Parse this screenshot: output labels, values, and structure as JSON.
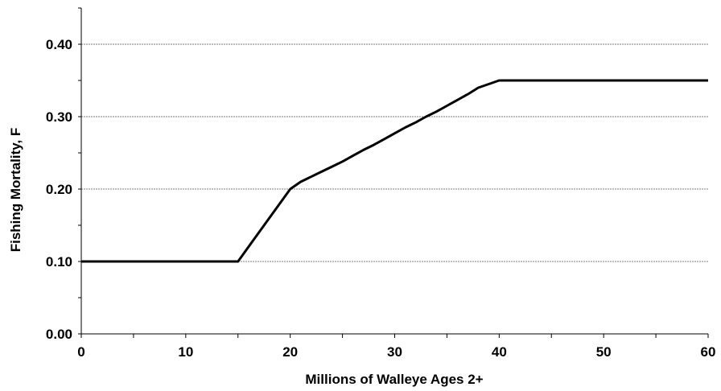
{
  "chart_data": {
    "type": "line",
    "title": "",
    "xlabel": "Millions of Walleye Ages 2+",
    "ylabel": "Fishing Mortality, F",
    "xlim": [
      0,
      60
    ],
    "ylim": [
      0,
      0.45
    ],
    "x_ticks": [
      0,
      10,
      20,
      30,
      40,
      50,
      60
    ],
    "x_tick_labels": [
      "0",
      "10",
      "20",
      "30",
      "40",
      "50",
      "60"
    ],
    "y_ticks": [
      0,
      0.1,
      0.2,
      0.3,
      0.4
    ],
    "y_tick_labels": [
      "0.00",
      "0.10",
      "0.20",
      "0.30",
      "0.40"
    ],
    "grid": "horizontal dotted at y ticks",
    "legend": "none",
    "line_color": "#000000",
    "series": [
      {
        "x": [
          0,
          15,
          16,
          17,
          18,
          19,
          20,
          21,
          22,
          23,
          24,
          25,
          26,
          27,
          28,
          29,
          30,
          31,
          32,
          33,
          34,
          35,
          36,
          37,
          38,
          39,
          40,
          60
        ],
        "y": [
          0.1,
          0.1,
          0.12,
          0.14,
          0.16,
          0.18,
          0.2,
          0.21,
          0.217,
          0.224,
          0.231,
          0.238,
          0.246,
          0.254,
          0.261,
          0.269,
          0.277,
          0.285,
          0.292,
          0.3,
          0.307,
          0.315,
          0.323,
          0.331,
          0.34,
          0.345,
          0.35,
          0.35
        ]
      }
    ]
  }
}
